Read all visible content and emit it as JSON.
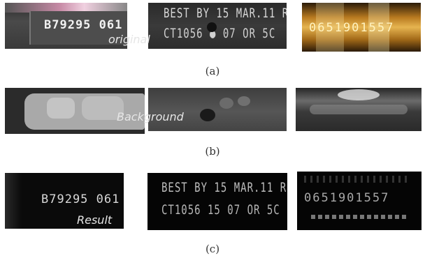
{
  "rows": [
    {
      "caption": "(a)",
      "overlay": "original",
      "panels": [
        {
          "lines": [
            "B79295 061"
          ]
        },
        {
          "lines": [
            "BEST BY 15 MAR.11 R",
            "CT1056  ●  07  OR 5C"
          ]
        },
        {
          "lines": [
            "0651901557"
          ]
        }
      ]
    },
    {
      "caption": "(b)",
      "overlay": "Background",
      "panels": [
        {},
        {},
        {}
      ]
    },
    {
      "caption": "(c)",
      "overlay": "Result",
      "panels": [
        {
          "lines": [
            "B79295 061"
          ]
        },
        {
          "lines": [
            "BEST BY 15 MAR.11 R",
            "CT1056  15  07  OR 5C"
          ]
        },
        {
          "lines": [
            "0651901557"
          ]
        }
      ]
    }
  ]
}
